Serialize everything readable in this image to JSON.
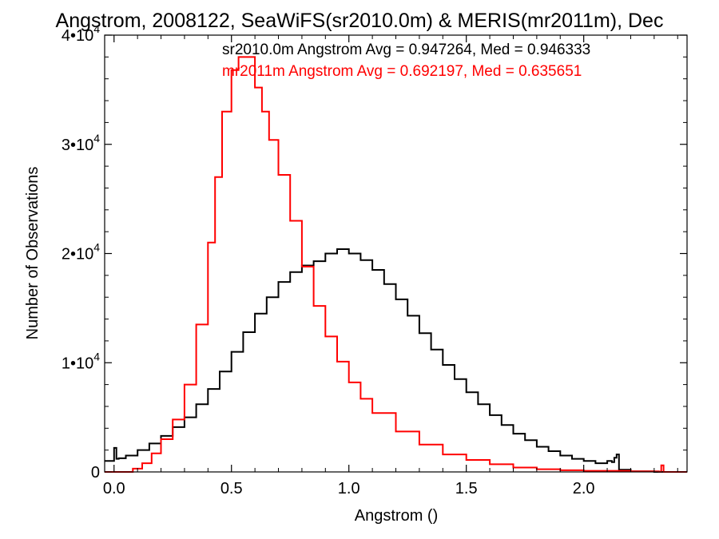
{
  "chart_data": {
    "type": "line",
    "title": "Angstrom, 2008122, SeaWiFS(sr2010.0m) & MERIS(mr2011m), Dec",
    "xlabel": "Angstrom ()",
    "ylabel": "Number of Observations",
    "xlim": [
      -0.04,
      2.44
    ],
    "ylim": [
      0,
      40000
    ],
    "x_ticks": [
      {
        "value": 0.0,
        "label": "0.0"
      },
      {
        "value": 0.5,
        "label": "0.5"
      },
      {
        "value": 1.0,
        "label": "1.0"
      },
      {
        "value": 1.5,
        "label": "1.5"
      },
      {
        "value": 2.0,
        "label": "2.0"
      }
    ],
    "y_ticks": [
      {
        "value": 0,
        "mantissa": "0",
        "exp": ""
      },
      {
        "value": 10000,
        "mantissa": "1•10",
        "exp": "4"
      },
      {
        "value": 20000,
        "mantissa": "2•10",
        "exp": "4"
      },
      {
        "value": 30000,
        "mantissa": "3•10",
        "exp": "4"
      },
      {
        "value": 40000,
        "mantissa": "4•10",
        "exp": "4"
      }
    ],
    "grid": false,
    "stats": [
      {
        "text": "sr2010.0m Angstrom Avg = 0.947264, Med = 0.946333",
        "color": "#000000"
      },
      {
        "text": "mr2011m Angstrom Avg = 0.692197, Med = 0.635651",
        "color": "#ff0000"
      }
    ],
    "series": [
      {
        "color": "#000000",
        "x": [
          -0.04,
          0.0,
          0.01,
          0.02,
          0.05,
          0.1,
          0.15,
          0.2,
          0.25,
          0.3,
          0.35,
          0.4,
          0.45,
          0.5,
          0.55,
          0.6,
          0.65,
          0.7,
          0.75,
          0.8,
          0.85,
          0.9,
          0.95,
          1.0,
          1.05,
          1.1,
          1.15,
          1.2,
          1.25,
          1.3,
          1.35,
          1.4,
          1.45,
          1.5,
          1.55,
          1.6,
          1.65,
          1.7,
          1.75,
          1.8,
          1.85,
          1.9,
          1.95,
          2.0,
          2.05,
          2.1,
          2.12,
          2.13,
          2.14,
          2.15,
          2.2,
          2.3,
          2.44
        ],
        "y": [
          1000,
          2200,
          1200,
          1250,
          1500,
          2000,
          2600,
          3300,
          4100,
          5000,
          6200,
          7600,
          9200,
          11000,
          12800,
          14500,
          16000,
          17400,
          18300,
          18900,
          19300,
          20000,
          20400,
          20000,
          19400,
          18500,
          17200,
          15800,
          14300,
          12700,
          11200,
          9800,
          8500,
          7300,
          6200,
          5200,
          4300,
          3500,
          2900,
          2300,
          1900,
          1500,
          1200,
          1000,
          800,
          1000,
          900,
          1300,
          1600,
          200,
          50,
          0,
          0
        ]
      },
      {
        "color": "#ff0000",
        "x": [
          -0.04,
          0.05,
          0.08,
          0.12,
          0.16,
          0.2,
          0.25,
          0.3,
          0.35,
          0.4,
          0.43,
          0.46,
          0.5,
          0.53,
          0.56,
          0.6,
          0.63,
          0.66,
          0.7,
          0.75,
          0.8,
          0.85,
          0.9,
          0.95,
          1.0,
          1.05,
          1.1,
          1.2,
          1.3,
          1.4,
          1.5,
          1.6,
          1.7,
          1.8,
          1.9,
          2.0,
          2.2,
          2.32,
          2.33,
          2.34,
          2.44
        ],
        "y": [
          0,
          0,
          300,
          800,
          1700,
          3000,
          4800,
          8000,
          13500,
          21000,
          27000,
          33000,
          36800,
          38000,
          38000,
          35200,
          33000,
          30400,
          27200,
          23000,
          18800,
          15200,
          12400,
          10100,
          8200,
          6700,
          5400,
          3700,
          2500,
          1600,
          1100,
          700,
          400,
          250,
          150,
          100,
          50,
          20,
          600,
          0,
          0
        ]
      }
    ]
  }
}
